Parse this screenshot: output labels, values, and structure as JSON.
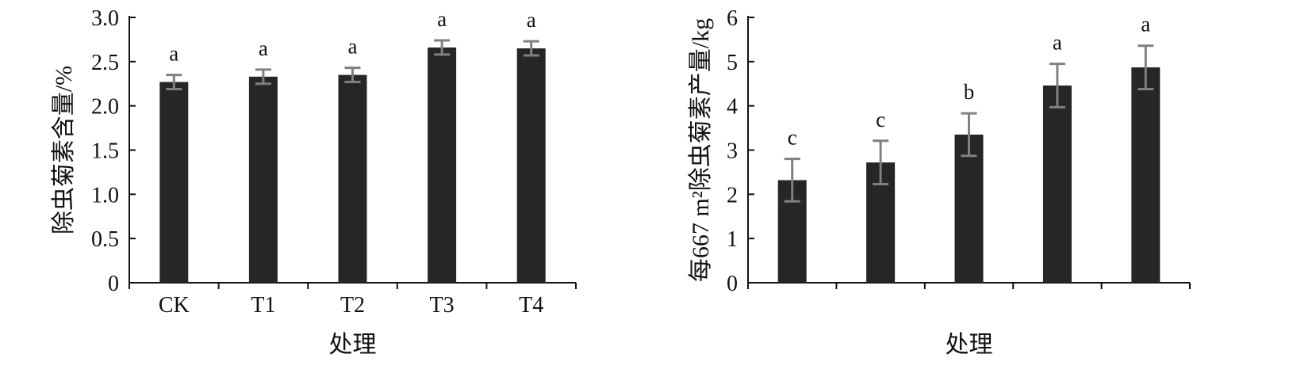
{
  "chart_data": [
    {
      "type": "bar",
      "categories": [
        "CK",
        "T1",
        "T2",
        "T3",
        "T4"
      ],
      "values": [
        2.27,
        2.33,
        2.35,
        2.66,
        2.65
      ],
      "errors": [
        0.08,
        0.08,
        0.08,
        0.08,
        0.08
      ],
      "significance": [
        "a",
        "a",
        "a",
        "a",
        "a"
      ],
      "xlabel": "处理",
      "ylabel": "除虫菊素含量/%",
      "ylim": [
        0,
        3.0
      ],
      "yticks": [
        "0",
        "0.5",
        "1.0",
        "1.5",
        "2.0",
        "2.5",
        "3.0"
      ],
      "ytick_values": [
        0,
        0.5,
        1.0,
        1.5,
        2.0,
        2.5,
        3.0
      ],
      "grid": false,
      "bar_color": "#262626",
      "error_color": "#808080"
    },
    {
      "type": "bar",
      "categories": [
        "",
        "",
        "",
        "",
        ""
      ],
      "values": [
        2.32,
        2.72,
        3.35,
        4.46,
        4.87
      ],
      "errors": [
        0.48,
        0.49,
        0.48,
        0.49,
        0.49
      ],
      "significance": [
        "c",
        "c",
        "b",
        "a",
        "a"
      ],
      "xlabel": "处理",
      "ylabel": "每667 m²除虫菊素产量/kg",
      "ylim": [
        0,
        6
      ],
      "yticks": [
        "0",
        "1",
        "2",
        "3",
        "4",
        "5",
        "6"
      ],
      "ytick_values": [
        0,
        1,
        2,
        3,
        4,
        5,
        6
      ],
      "grid": false,
      "bar_color": "#262626",
      "error_color": "#808080"
    }
  ]
}
